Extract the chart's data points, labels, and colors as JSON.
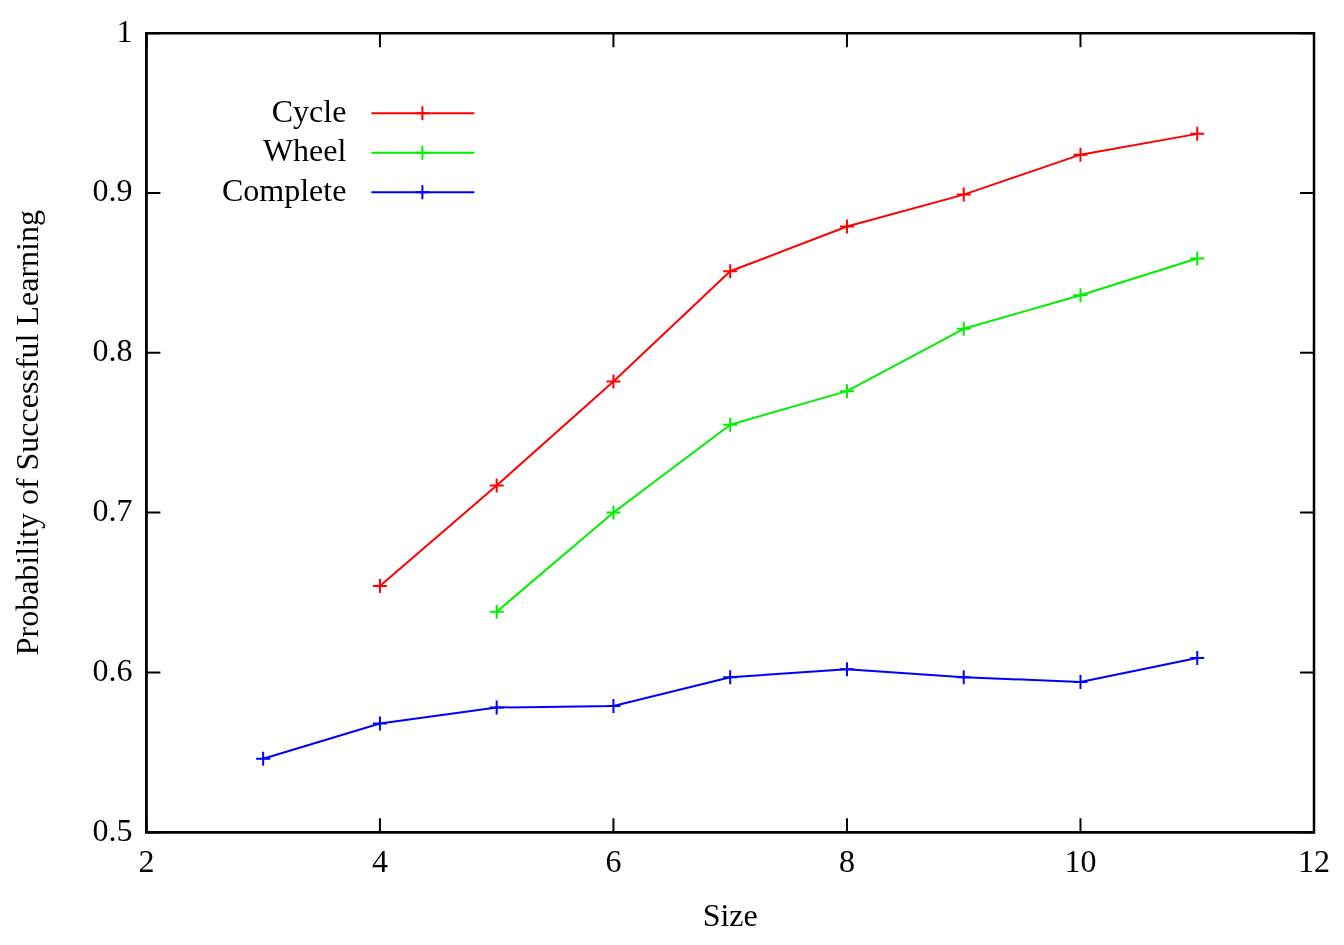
{
  "chart_data": {
    "type": "line",
    "xlabel": "Size",
    "ylabel": "Probability of Successful Learning",
    "xlim": [
      2,
      12
    ],
    "xticks": [
      2,
      4,
      6,
      8,
      10,
      12
    ],
    "ylim": [
      0.5,
      1
    ],
    "yticks": [
      0.5,
      0.6,
      0.7,
      0.8,
      0.9,
      1
    ],
    "grid": false,
    "legend": "top left",
    "line_style": "solid",
    "series": [
      {
        "name": "Cycle",
        "color": "#ff0000",
        "marker": "cross",
        "x": [
          4,
          5,
          6,
          7,
          8,
          9,
          10,
          11
        ],
        "values": [
          0.654,
          0.717,
          0.782,
          0.851,
          0.879,
          0.899,
          0.924,
          0.937
        ]
      },
      {
        "name": "Wheel",
        "color": "#00ee00",
        "marker": "cross",
        "x": [
          5,
          6,
          7,
          8,
          9,
          10,
          11
        ],
        "values": [
          0.638,
          0.7,
          0.755,
          0.776,
          0.815,
          0.836,
          0.859
        ]
      },
      {
        "name": "Complete",
        "color": "#0000ff",
        "marker": "cross",
        "x": [
          3,
          4,
          5,
          6,
          7,
          8,
          9,
          10,
          11
        ],
        "values": [
          0.546,
          0.568,
          0.578,
          0.579,
          0.597,
          0.602,
          0.597,
          0.594,
          0.609
        ]
      }
    ]
  }
}
